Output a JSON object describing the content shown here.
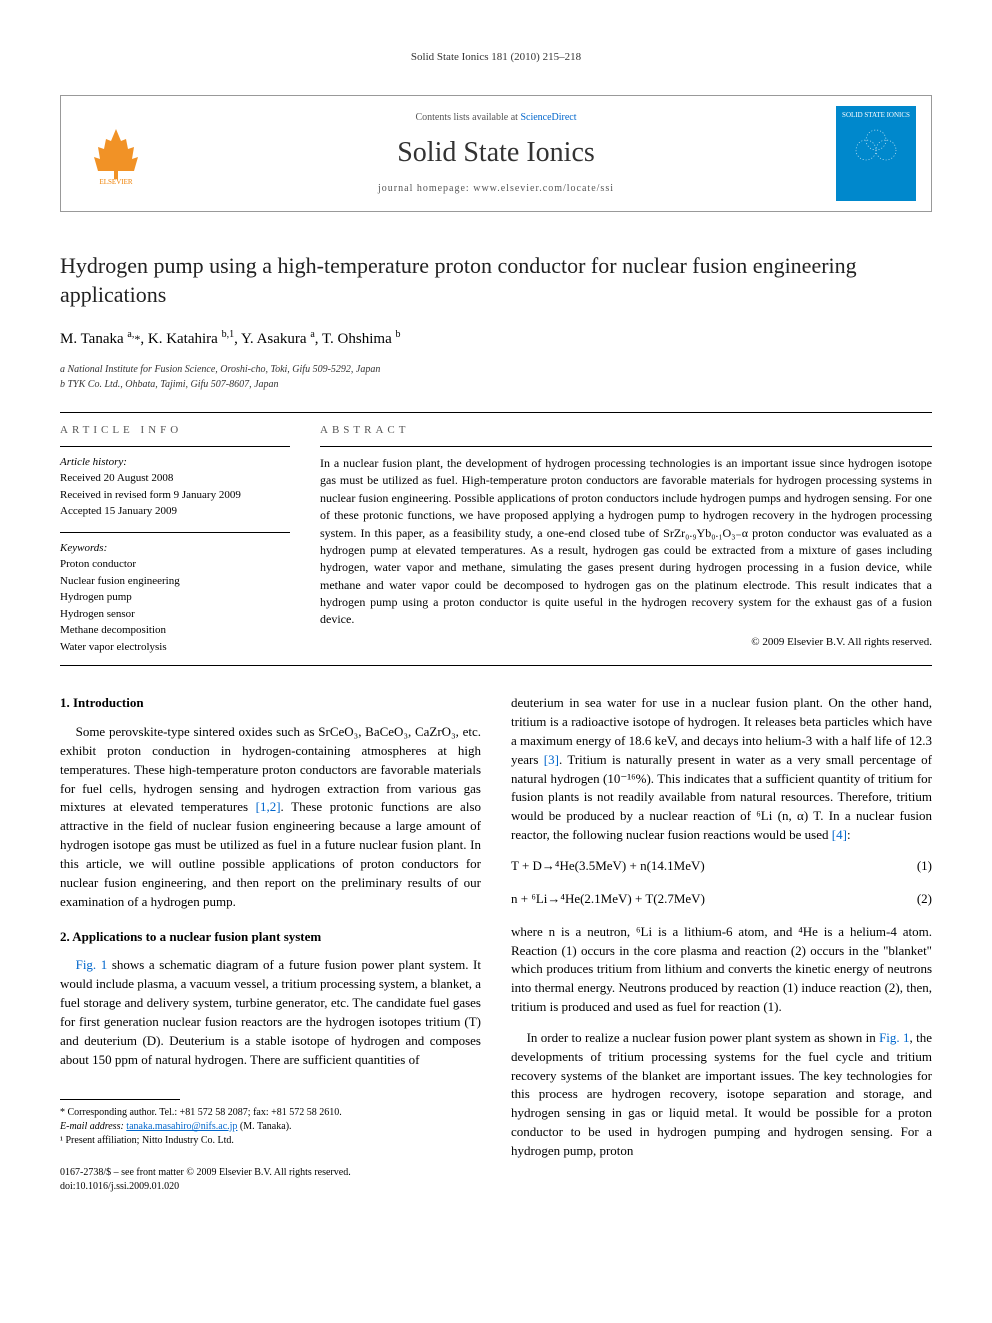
{
  "running_head": "Solid State Ionics 181 (2010) 215–218",
  "header": {
    "contents_prefix": "Contents lists available at ",
    "contents_link": "ScienceDirect",
    "journal_name": "Solid State Ionics",
    "homepage_prefix": "journal homepage: ",
    "homepage": "www.elsevier.com/locate/ssi",
    "publisher_label": "ELSEVIER",
    "cover_label": "SOLID STATE IONICS"
  },
  "title": "Hydrogen pump using a high-temperature proton conductor for nuclear fusion engineering applications",
  "authors_html": "M. Tanaka <sup>a,</sup><span class='star'>*</span>, K. Katahira <sup>b,1</sup>, Y. Asakura <sup>a</sup>, T. Ohshima <sup>b</sup>",
  "affiliations": {
    "a": "a National Institute for Fusion Science, Oroshi-cho, Toki, Gifu 509-5292, Japan",
    "b": "b TYK Co. Ltd., Ohbata, Tajimi, Gifu 507-8607, Japan"
  },
  "info": {
    "head": "article info",
    "history_label": "Article history:",
    "received": "Received 20 August 2008",
    "revised": "Received in revised form 9 January 2009",
    "accepted": "Accepted 15 January 2009",
    "keywords_label": "Keywords:",
    "keywords": [
      "Proton conductor",
      "Nuclear fusion engineering",
      "Hydrogen pump",
      "Hydrogen sensor",
      "Methane decomposition",
      "Water vapor electrolysis"
    ]
  },
  "abstract": {
    "head": "abstract",
    "text": "In a nuclear fusion plant, the development of hydrogen processing technologies is an important issue since hydrogen isotope gas must be utilized as fuel. High-temperature proton conductors are favorable materials for hydrogen processing systems in nuclear fusion engineering. Possible applications of proton conductors include hydrogen pumps and hydrogen sensing. For one of these protonic functions, we have proposed applying a hydrogen pump to hydrogen recovery in the hydrogen processing system. In this paper, as a feasibility study, a one-end closed tube of SrZr₀.₉Yb₀.₁O₃₋α proton conductor was evaluated as a hydrogen pump at elevated temperatures. As a result, hydrogen gas could be extracted from a mixture of gases including hydrogen, water vapor and methane, simulating the gases present during hydrogen processing in a fusion device, while methane and water vapor could be decomposed to hydrogen gas on the platinum electrode. This result indicates that a hydrogen pump using a proton conductor is quite useful in the hydrogen recovery system for the exhaust gas of a fusion device.",
    "copyright": "© 2009 Elsevier B.V. All rights reserved."
  },
  "sections": {
    "s1_head": "1. Introduction",
    "s1_p1": "Some perovskite-type sintered oxides such as SrCeO₃, BaCeO₃, CaZrO₃, etc. exhibit proton conduction in hydrogen-containing atmospheres at high temperatures. These high-temperature proton conductors are favorable materials for fuel cells, hydrogen sensing and hydrogen extraction from various gas mixtures at elevated temperatures ",
    "s1_ref1": "[1,2]",
    "s1_p1b": ". These protonic functions are also attractive in the field of nuclear fusion engineering because a large amount of hydrogen isotope gas must be utilized as fuel in a future nuclear fusion plant. In this article, we will outline possible applications of proton conductors for nuclear fusion engineering, and then report on the preliminary results of our examination of a hydrogen pump.",
    "s2_head": "2. Applications to a nuclear fusion plant system",
    "s2_p1a": "",
    "s2_fig1": "Fig. 1",
    "s2_p1b": " shows a schematic diagram of a future fusion power plant system. It would include plasma, a vacuum vessel, a tritium processing system, a blanket, a fuel storage and delivery system, turbine generator, etc. The candidate fuel gases for first generation nuclear fusion reactors are the hydrogen isotopes tritium (T) and deuterium (D). Deuterium is a stable isotope of hydrogen and composes about 150 ppm of natural hydrogen. There are sufficient quantities of",
    "col2_p1a": "deuterium in sea water for use in a nuclear fusion plant. On the other hand, tritium is a radioactive isotope of hydrogen. It releases beta particles which have a maximum energy of 18.6 keV, and decays into helium-3 with a half life of 12.3 years ",
    "col2_ref3": "[3]",
    "col2_p1b": ". Tritium is naturally present in water as a very small percentage of natural hydrogen (10⁻¹⁶%). This indicates that a sufficient quantity of tritium for fusion plants is not readily available from natural resources. Therefore, tritium would be produced by a nuclear reaction of ⁶Li (n, α) T. In a nuclear fusion reactor, the following nuclear fusion reactions would be used ",
    "col2_ref4": "[4]",
    "col2_p1c": ":",
    "eq1": "T + D→⁴He(3.5MeV) + n(14.1MeV)",
    "eq1_num": "(1)",
    "eq2": "n + ⁶Li→⁴He(2.1MeV) + T(2.7MeV)",
    "eq2_num": "(2)",
    "col2_p2": "where n is a neutron, ⁶Li is a lithium-6 atom, and ⁴He is a helium-4 atom. Reaction (1) occurs in the core plasma and reaction (2) occurs in the \"blanket\" which produces tritium from lithium and converts the kinetic energy of neutrons into thermal energy. Neutrons produced by reaction (1) induce reaction (2), then, tritium is produced and used as fuel for reaction (1).",
    "col2_p3a": "In order to realize a nuclear fusion power plant system as shown in ",
    "col2_fig1": "Fig. 1",
    "col2_p3b": ", the developments of tritium processing systems for the fuel cycle and tritium recovery systems of the blanket are important issues. The key technologies for this process are hydrogen recovery, isotope separation and storage, and hydrogen sensing in gas or liquid metal. It would be possible for a proton conductor to be used in hydrogen pumping and hydrogen sensing. For a hydrogen pump, proton"
  },
  "footnotes": {
    "corr_label": "* Corresponding author. Tel.: +81 572 58 2087; fax: +81 572 58 2610.",
    "email_label": "E-mail address: ",
    "email": "tanaka.masahiro@nifs.ac.jp",
    "email_suffix": " (M. Tanaka).",
    "fn1": "¹ Present affiliation; Nitto Industry Co. Ltd."
  },
  "footer": {
    "issn": "0167-2738/$ – see front matter © 2009 Elsevier B.V. All rights reserved.",
    "doi": "doi:10.1016/j.ssi.2009.01.020"
  },
  "colors": {
    "link": "#0066cc",
    "cover_bg": "#0088cc",
    "elsevier_orange": "#ee7f00"
  }
}
